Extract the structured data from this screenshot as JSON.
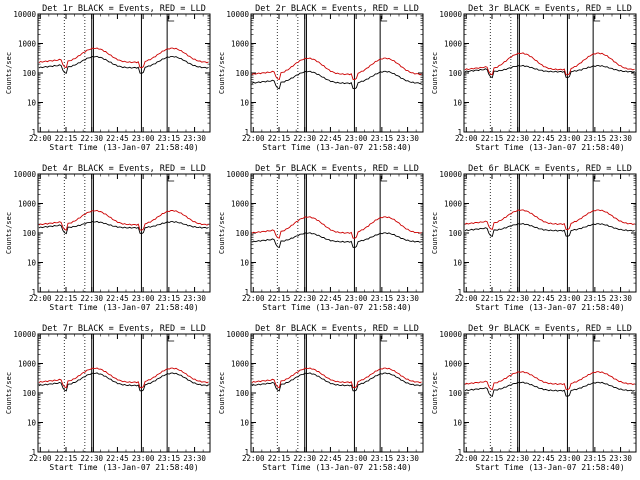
{
  "chart_data": [
    {
      "type": "line",
      "title": "Det 1r BLACK = Events, RED = LLD",
      "xlabel": "Start Time (13-Jan-07 21:58:40)",
      "ylabel": "Counts/sec",
      "yscale": "log",
      "ylim": [
        1,
        10000
      ],
      "xticks": [
        "22:00",
        "22:15",
        "22:30",
        "22:45",
        "23:00",
        "23:15",
        "23:30"
      ],
      "yticks": [
        "1",
        "10",
        "100",
        "1000",
        "10000"
      ],
      "series": [
        {
          "name": "Events",
          "color": "#000000",
          "base": 150,
          "amp": 2.4
        },
        {
          "name": "LLD",
          "color": "#cc0000",
          "base": 230,
          "amp": 3.0
        }
      ],
      "dotted_lines": [
        "22:14",
        "22:26"
      ],
      "solid_lines": [
        "22:30",
        "22:31",
        "22:59",
        "23:14"
      ]
    },
    {
      "type": "line",
      "title": "Det 2r BLACK = Events, RED = LLD",
      "xlabel": "Start Time (13-Jan-07 21:58:40)",
      "ylabel": "Counts/sec",
      "yscale": "log",
      "ylim": [
        1,
        10000
      ],
      "xticks": [
        "22:00",
        "22:15",
        "22:30",
        "22:45",
        "23:00",
        "23:15",
        "23:30"
      ],
      "yticks": [
        "1",
        "10",
        "100",
        "1000",
        "10000"
      ],
      "series": [
        {
          "name": "Events",
          "color": "#000000",
          "base": 45,
          "amp": 2.5
        },
        {
          "name": "LLD",
          "color": "#cc0000",
          "base": 90,
          "amp": 3.5
        }
      ],
      "dotted_lines": [
        "22:14",
        "22:26"
      ],
      "solid_lines": [
        "22:30",
        "22:31",
        "22:59",
        "23:14"
      ]
    },
    {
      "type": "line",
      "title": "Det 3r BLACK = Events, RED = LLD",
      "xlabel": "Start Time (13-Jan-07 21:58:40)",
      "ylabel": "Counts/sec",
      "yscale": "log",
      "ylim": [
        1,
        10000
      ],
      "xticks": [
        "22:00",
        "22:15",
        "22:30",
        "22:45",
        "23:00",
        "23:15",
        "23:30"
      ],
      "yticks": [
        "1",
        "10",
        "100",
        "1000",
        "10000"
      ],
      "series": [
        {
          "name": "Events",
          "color": "#000000",
          "base": 110,
          "amp": 1.6
        },
        {
          "name": "LLD",
          "color": "#cc0000",
          "base": 130,
          "amp": 3.6
        }
      ],
      "dotted_lines": [
        "22:14",
        "22:26"
      ],
      "solid_lines": [
        "22:30",
        "22:31",
        "22:59",
        "23:14"
      ]
    },
    {
      "type": "line",
      "title": "Det 4r BLACK = Events, RED = LLD",
      "xlabel": "Start Time (13-Jan-07 21:58:40)",
      "ylabel": "Counts/sec",
      "yscale": "log",
      "ylim": [
        1,
        10000
      ],
      "xticks": [
        "22:00",
        "22:15",
        "22:30",
        "22:45",
        "23:00",
        "23:15",
        "23:30"
      ],
      "yticks": [
        "1",
        "10",
        "100",
        "1000",
        "10000"
      ],
      "series": [
        {
          "name": "Events",
          "color": "#000000",
          "base": 150,
          "amp": 1.6
        },
        {
          "name": "LLD",
          "color": "#cc0000",
          "base": 190,
          "amp": 3.0
        }
      ],
      "dotted_lines": [
        "22:14",
        "22:26"
      ],
      "solid_lines": [
        "22:30",
        "22:31",
        "22:59",
        "23:14"
      ]
    },
    {
      "type": "line",
      "title": "Det 5r BLACK = Events, RED = LLD",
      "xlabel": "Start Time (13-Jan-07 21:58:40)",
      "ylabel": "Counts/sec",
      "yscale": "log",
      "ylim": [
        1,
        10000
      ],
      "xticks": [
        "22:00",
        "22:15",
        "22:30",
        "22:45",
        "23:00",
        "23:15",
        "23:30"
      ],
      "yticks": [
        "1",
        "10",
        "100",
        "1000",
        "10000"
      ],
      "series": [
        {
          "name": "Events",
          "color": "#000000",
          "base": 50,
          "amp": 2.0
        },
        {
          "name": "LLD",
          "color": "#cc0000",
          "base": 100,
          "amp": 3.5
        }
      ],
      "dotted_lines": [
        "22:14",
        "22:26"
      ],
      "solid_lines": [
        "22:30",
        "22:31",
        "22:59",
        "23:14"
      ]
    },
    {
      "type": "line",
      "title": "Det 6r BLACK = Events, RED = LLD",
      "xlabel": "Start Time (13-Jan-07 21:58:40)",
      "ylabel": "Counts/sec",
      "yscale": "log",
      "ylim": [
        1,
        10000
      ],
      "xticks": [
        "22:00",
        "22:15",
        "22:30",
        "22:45",
        "23:00",
        "23:15",
        "23:30"
      ],
      "yticks": [
        "1",
        "10",
        "100",
        "1000",
        "10000"
      ],
      "series": [
        {
          "name": "Events",
          "color": "#000000",
          "base": 120,
          "amp": 1.7
        },
        {
          "name": "LLD",
          "color": "#cc0000",
          "base": 200,
          "amp": 3.0
        }
      ],
      "dotted_lines": [
        "22:14",
        "22:26"
      ],
      "solid_lines": [
        "22:30",
        "22:31",
        "22:59",
        "23:14"
      ]
    },
    {
      "type": "line",
      "title": "Det 7r BLACK = Events, RED = LLD",
      "xlabel": "Start Time (13-Jan-07 21:58:40)",
      "ylabel": "Counts/sec",
      "yscale": "log",
      "ylim": [
        1,
        10000
      ],
      "xticks": [
        "22:00",
        "22:15",
        "22:30",
        "22:45",
        "23:00",
        "23:15",
        "23:30"
      ],
      "yticks": [
        "1",
        "10",
        "100",
        "1000",
        "10000"
      ],
      "series": [
        {
          "name": "Events",
          "color": "#000000",
          "base": 180,
          "amp": 2.6
        },
        {
          "name": "LLD",
          "color": "#cc0000",
          "base": 230,
          "amp": 3.0
        }
      ],
      "dotted_lines": [
        "22:14",
        "22:26"
      ],
      "solid_lines": [
        "22:30",
        "22:31",
        "22:59",
        "23:14"
      ]
    },
    {
      "type": "line",
      "title": "Det 8r BLACK = Events, RED = LLD",
      "xlabel": "Start Time (13-Jan-07 21:58:40)",
      "ylabel": "Counts/sec",
      "yscale": "log",
      "ylim": [
        1,
        10000
      ],
      "xticks": [
        "22:00",
        "22:15",
        "22:30",
        "22:45",
        "23:00",
        "23:15",
        "23:30"
      ],
      "yticks": [
        "1",
        "10",
        "100",
        "1000",
        "10000"
      ],
      "series": [
        {
          "name": "Events",
          "color": "#000000",
          "base": 180,
          "amp": 2.6
        },
        {
          "name": "LLD",
          "color": "#cc0000",
          "base": 230,
          "amp": 3.0
        }
      ],
      "dotted_lines": [
        "22:14",
        "22:26"
      ],
      "solid_lines": [
        "22:30",
        "22:31",
        "22:59",
        "23:14"
      ]
    },
    {
      "type": "line",
      "title": "Det 9r BLACK = Events, RED = LLD",
      "xlabel": "Start Time (13-Jan-07 21:58:40)",
      "ylabel": "Counts/sec",
      "yscale": "log",
      "ylim": [
        1,
        10000
      ],
      "xticks": [
        "22:00",
        "22:15",
        "22:30",
        "22:45",
        "23:00",
        "23:15",
        "23:30"
      ],
      "yticks": [
        "1",
        "10",
        "100",
        "1000",
        "10000"
      ],
      "series": [
        {
          "name": "Events",
          "color": "#000000",
          "base": 120,
          "amp": 1.9
        },
        {
          "name": "LLD",
          "color": "#cc0000",
          "base": 200,
          "amp": 2.6
        }
      ],
      "dotted_lines": [
        "22:14",
        "22:26"
      ],
      "solid_lines": [
        "22:30",
        "22:31",
        "22:59",
        "23:14"
      ]
    }
  ]
}
